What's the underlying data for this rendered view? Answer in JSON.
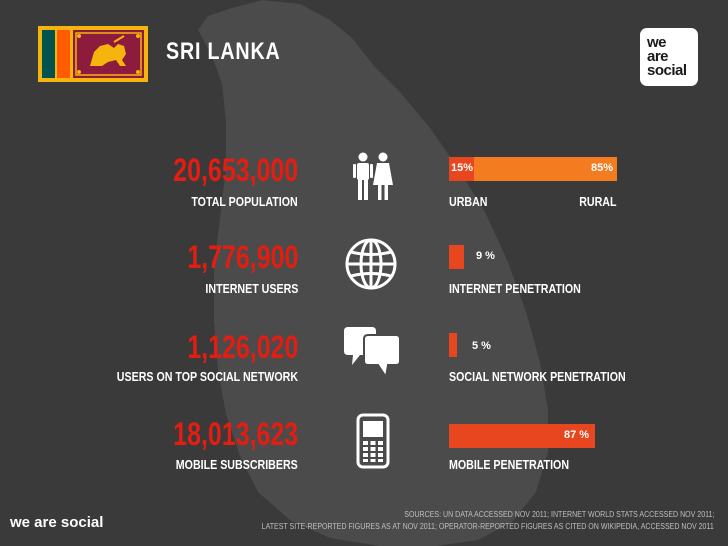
{
  "header": {
    "country": "SRI LANKA",
    "brand_lines": [
      "we",
      "are",
      "social"
    ]
  },
  "stats": [
    {
      "value": "20,653,000",
      "label": "TOTAL POPULATION",
      "icon": "people-icon"
    },
    {
      "value": "1,776,900",
      "label": "INTERNET USERS",
      "icon": "globe-icon"
    },
    {
      "value": "1,126,020",
      "label": "USERS ON TOP SOCIAL NETWORK",
      "icon": "speech-bubbles-icon"
    },
    {
      "value": "18,013,623",
      "label": "MOBILE SUBSCRIBERS",
      "icon": "mobile-phone-icon"
    }
  ],
  "bars": {
    "urban_rural": {
      "urban_text": "15%",
      "rural_text": "85%",
      "urban_fraction": 0.15,
      "rural_fraction": 0.85,
      "urban_label": "URBAN",
      "rural_label": "RURAL",
      "urban_color": "#e8461e",
      "rural_color": "#f47c20"
    },
    "internet": {
      "text": "9 %",
      "fraction": 0.09,
      "label": "INTERNET PENETRATION",
      "color": "#e8461e"
    },
    "social": {
      "text": "5 %",
      "fraction": 0.05,
      "label": "SOCIAL NETWORK PENETRATION",
      "color": "#e8461e"
    },
    "mobile": {
      "text": "87 %",
      "fraction": 0.87,
      "label": "MOBILE PENETRATION",
      "color": "#e8461e"
    }
  },
  "footer": {
    "brand": "we are social",
    "source_line1": "SOURCES: UN DATA ACCESSED NOV 2011; INTERNET WORLD STATS ACCESSED NOV 2011;",
    "source_line2": "LATEST SITE-REPORTED FIGURES AS AT NOV 2011; OPERATOR-REPORTED FIGURES AS CITED ON WIKIPEDIA, ACCESSED NOV 2011"
  },
  "colors": {
    "background": "#3a3a3a",
    "map": "#4a4a4a",
    "accent_red": "#e21d12",
    "flag_maroon": "#8d1b3d",
    "flag_gold": "#f6b40e",
    "flag_green": "#00534e",
    "flag_orange": "#ff5b00"
  }
}
